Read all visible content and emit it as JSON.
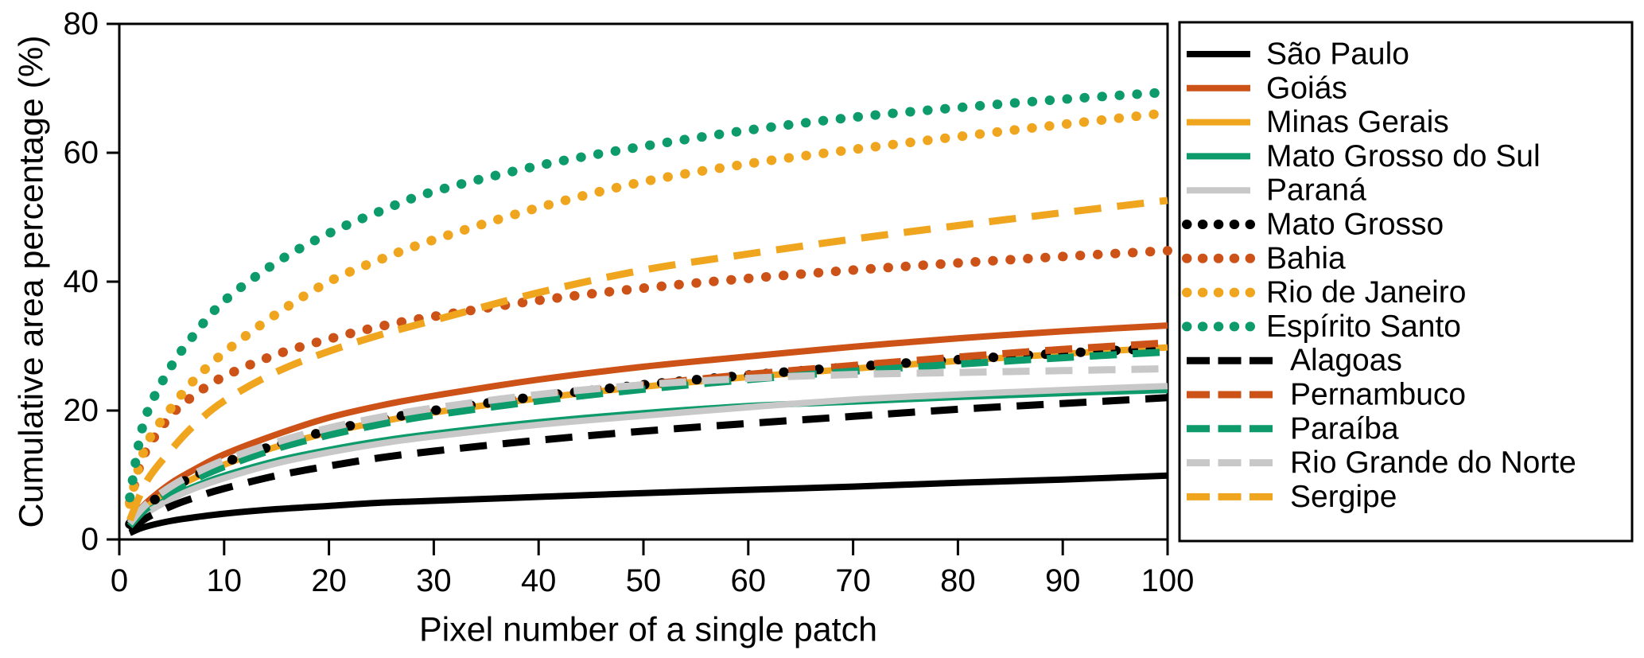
{
  "chart_data": {
    "type": "line",
    "title": "",
    "xlabel": "Pixel number of a single patch",
    "ylabel": "Cumulative area percentage (%)",
    "xlim": [
      0,
      100
    ],
    "ylim": [
      0,
      80
    ],
    "x_ticks": [
      0,
      10,
      20,
      30,
      40,
      50,
      60,
      70,
      80,
      90,
      100
    ],
    "y_ticks": [
      0,
      20,
      40,
      60,
      80
    ],
    "grid": false,
    "legend_position": "right",
    "x": [
      1,
      2,
      3,
      5,
      7,
      10,
      15,
      20,
      25,
      30,
      40,
      50,
      60,
      70,
      80,
      90,
      100
    ],
    "series": [
      {
        "name": "São Paulo",
        "color": "#000000",
        "line_style": "solid",
        "values": [
          1.0,
          1.7,
          2.2,
          2.9,
          3.4,
          4.0,
          4.7,
          5.2,
          5.7,
          6.0,
          6.6,
          7.2,
          7.7,
          8.2,
          8.8,
          9.3,
          9.9
        ]
      },
      {
        "name": "Goiás",
        "color": "#CC5217",
        "line_style": "solid",
        "values": [
          2.5,
          4.7,
          6.3,
          8.8,
          10.7,
          13.2,
          16.3,
          18.9,
          20.8,
          22.3,
          24.8,
          26.8,
          28.4,
          29.9,
          31.2,
          32.3,
          33.2
        ]
      },
      {
        "name": "Minas Gerais",
        "color": "#EFA51E",
        "line_style": "solid",
        "values": [
          2.2,
          4.1,
          5.5,
          7.7,
          9.4,
          11.6,
          14.4,
          16.6,
          18.3,
          19.7,
          21.9,
          23.7,
          25.2,
          26.5,
          27.7,
          28.8,
          29.8
        ]
      },
      {
        "name": "Mato Grosso do Sul",
        "color": "#0D9B6C",
        "line_style": "solid",
        "values": [
          1.9,
          3.5,
          4.7,
          6.6,
          8.1,
          9.9,
          12.2,
          13.9,
          15.3,
          16.4,
          18.2,
          19.6,
          20.7,
          21.4,
          22.1,
          22.7,
          23.2
        ]
      },
      {
        "name": "Paraná",
        "color": "#C8C8C8",
        "line_style": "solid",
        "values": [
          1.8,
          3.3,
          4.5,
          6.3,
          7.8,
          9.5,
          11.8,
          13.5,
          14.9,
          16.0,
          17.8,
          19.2,
          20.5,
          21.7,
          22.5,
          23.2,
          23.8
        ]
      },
      {
        "name": "Mato Grosso",
        "color": "#000000",
        "line_style": "dotted",
        "values": [
          2.4,
          4.3,
          5.7,
          8.0,
          9.7,
          11.9,
          14.7,
          16.9,
          18.6,
          20.0,
          22.2,
          24.0,
          25.5,
          26.8,
          27.9,
          28.9,
          29.7
        ]
      },
      {
        "name": "Bahia",
        "color": "#CC5217",
        "line_style": "dotted",
        "values": [
          5.7,
          11.6,
          15.0,
          19.4,
          22.2,
          25.3,
          28.7,
          31.1,
          33.1,
          34.6,
          37.1,
          39.0,
          40.5,
          41.8,
          42.9,
          43.9,
          44.8
        ]
      },
      {
        "name": "Rio de Janeiro",
        "color": "#EFA51E",
        "line_style": "dotted",
        "values": [
          5.5,
          12.0,
          16.0,
          20.5,
          24.5,
          29.0,
          35.0,
          40.0,
          43.5,
          46.5,
          51.5,
          55.5,
          58.3,
          60.5,
          62.5,
          64.4,
          66.2
        ]
      },
      {
        "name": "Espírito Santo",
        "color": "#0D9B6C",
        "line_style": "dotted",
        "values": [
          6.5,
          16.0,
          21.0,
          27.0,
          31.5,
          37.0,
          43.0,
          47.5,
          51.0,
          54.0,
          58.0,
          61.0,
          63.5,
          65.5,
          67.0,
          68.3,
          69.4
        ]
      },
      {
        "name": "Alagoas",
        "color": "#000000",
        "line_style": "dashed",
        "values": [
          1.4,
          2.7,
          3.7,
          5.2,
          6.4,
          7.9,
          9.9,
          11.4,
          12.7,
          13.7,
          15.4,
          16.8,
          18.0,
          19.1,
          20.2,
          21.1,
          22.0
        ]
      },
      {
        "name": "Pernambuco",
        "color": "#CC5217",
        "line_style": "dashed",
        "values": [
          2.1,
          4.0,
          5.4,
          7.6,
          9.3,
          11.5,
          14.3,
          16.5,
          18.3,
          19.8,
          22.1,
          24.0,
          25.6,
          27.0,
          28.3,
          29.5,
          30.5
        ]
      },
      {
        "name": "Paraíba",
        "color": "#0D9B6C",
        "line_style": "dashed",
        "values": [
          2.1,
          3.9,
          5.3,
          7.5,
          9.2,
          11.3,
          14.1,
          16.2,
          17.9,
          19.3,
          21.5,
          23.3,
          24.8,
          26.1,
          27.2,
          28.2,
          29.1
        ]
      },
      {
        "name": "Rio Grande do Norte",
        "color": "#C8C8C8",
        "line_style": "dashed",
        "values": [
          2.5,
          4.5,
          6.0,
          8.3,
          10.1,
          12.3,
          15.1,
          17.3,
          19.0,
          20.4,
          22.5,
          24.0,
          25.0,
          25.6,
          25.9,
          26.2,
          26.5
        ]
      },
      {
        "name": "Sergipe",
        "color": "#EFA51E",
        "line_style": "dashed",
        "values": [
          3.0,
          7.0,
          10.0,
          14.0,
          17.5,
          21.5,
          26.0,
          29.2,
          31.8,
          34.0,
          38.3,
          41.8,
          44.3,
          46.6,
          48.7,
          50.7,
          52.6
        ]
      }
    ]
  }
}
